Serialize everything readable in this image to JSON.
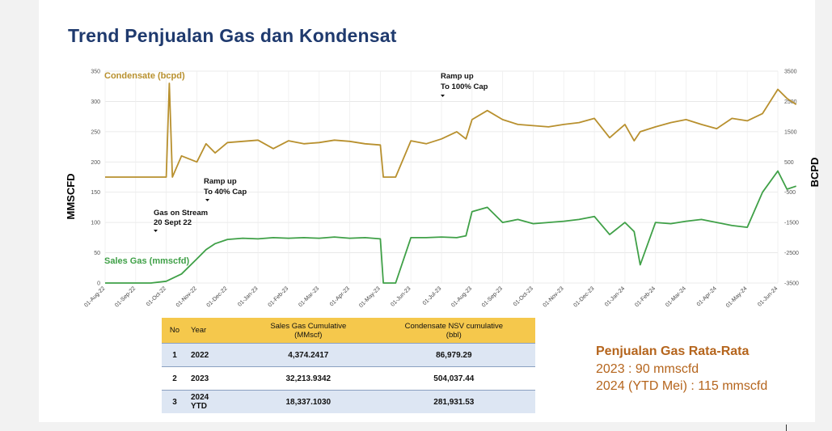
{
  "slide": {
    "title": "Trend Penjualan Gas dan Kondensat"
  },
  "chart_data": {
    "type": "line",
    "left_axis": {
      "label": "MMSCFD",
      "ticks": [
        0,
        50,
        100,
        150,
        200,
        250,
        300,
        350
      ],
      "range": [
        0,
        350
      ]
    },
    "right_axis": {
      "label": "BCPD",
      "ticks": [
        -3500,
        -2500,
        -1500,
        -500,
        500,
        1500,
        2500,
        3500
      ],
      "range": [
        -3500,
        3500
      ]
    },
    "x_ticks": [
      "01-Aug-22",
      "01-Sep-22",
      "01-Oct-22",
      "01-Nov-22",
      "01-Dec-22",
      "01-Jan-23",
      "01-Feb-23",
      "01-Mar-23",
      "01-Apr-23",
      "01-May-23",
      "01-Jun-23",
      "01-Jul-23",
      "01-Aug-23",
      "01-Sep-23",
      "01-Oct-23",
      "01-Nov-23",
      "01-Dec-23",
      "01-Jan-24",
      "01-Feb-24",
      "01-Mar-24",
      "01-Apr-24",
      "01-May-24",
      "01-Jun-24"
    ],
    "series": [
      {
        "name": "Condensate (bcpd)",
        "color": "#b8902e",
        "axis": "left",
        "x": [
          0,
          1,
          1.5,
          2,
          2.1,
          2.2,
          2.5,
          3,
          3.3,
          3.6,
          4,
          4.5,
          5,
          5.5,
          6,
          6.5,
          7,
          7.5,
          8,
          8.5,
          9,
          9.1,
          9.3,
          9.5,
          10,
          10.5,
          11,
          11.5,
          11.8,
          12,
          12.5,
          13,
          13.5,
          14,
          14.5,
          15,
          15.5,
          16,
          16.5,
          17,
          17.3,
          17.5,
          18,
          18.5,
          19,
          19.5,
          20,
          20.5,
          21,
          21.5,
          22,
          22.3,
          22.6
        ],
        "y": [
          175,
          175,
          175,
          175,
          330,
          175,
          210,
          200,
          230,
          215,
          232,
          234,
          236,
          222,
          235,
          230,
          232,
          236,
          234,
          230,
          228,
          175,
          175,
          175,
          235,
          230,
          238,
          250,
          238,
          270,
          285,
          270,
          262,
          260,
          258,
          262,
          265,
          272,
          240,
          262,
          235,
          250,
          258,
          265,
          270,
          262,
          255,
          272,
          268,
          280,
          320,
          305,
          295
        ]
      },
      {
        "name": "Sales Gas (mmscfd)",
        "color": "#3fa047",
        "axis": "left",
        "x": [
          0,
          1,
          1.5,
          2,
          2.5,
          3,
          3.3,
          3.6,
          4,
          4.5,
          5,
          5.5,
          6,
          6.5,
          7,
          7.5,
          8,
          8.5,
          9,
          9.1,
          9.3,
          9.5,
          10,
          10.5,
          11,
          11.5,
          11.8,
          12,
          12.5,
          13,
          13.5,
          14,
          14.5,
          15,
          15.5,
          16,
          16.5,
          17,
          17.3,
          17.5,
          18,
          18.5,
          19,
          19.5,
          20,
          20.5,
          21,
          21.5,
          22,
          22.3,
          22.6
        ],
        "y": [
          0,
          0,
          0,
          3,
          15,
          40,
          55,
          65,
          72,
          74,
          73,
          75,
          74,
          75,
          74,
          76,
          74,
          75,
          73,
          0,
          0,
          0,
          75,
          75,
          76,
          75,
          78,
          118,
          125,
          100,
          105,
          98,
          100,
          102,
          105,
          110,
          80,
          100,
          85,
          30,
          100,
          98,
          102,
          105,
          100,
          95,
          92,
          150,
          185,
          155,
          160
        ]
      }
    ],
    "annotations": [
      {
        "text": [
          "Gas on Stream",
          "20 Sept 22"
        ]
      },
      {
        "text": [
          "Ramp up",
          "To 40% Cap"
        ]
      },
      {
        "text": [
          "Ramp up",
          "To 100% Cap"
        ]
      }
    ]
  },
  "summary_table": {
    "headers": {
      "no": "No",
      "year": "Year",
      "gas": "Sales Gas Cumulative",
      "gas_unit": "(MMscf)",
      "cond": "Condensate NSV cumulative",
      "cond_unit": "(bbl)"
    },
    "rows": [
      {
        "no": "1",
        "year": "2022",
        "year2": "",
        "gas": "4,374.2417",
        "cond": "86,979.29"
      },
      {
        "no": "2",
        "year": "2023",
        "year2": "",
        "gas": "32,213.9342",
        "cond": "504,037.44"
      },
      {
        "no": "3",
        "year": "2024",
        "year2": "YTD",
        "gas": "18,337.1030",
        "cond": "281,931.53"
      }
    ]
  },
  "averages": {
    "title": "Penjualan Gas Rata-Rata",
    "line1": "2023 : 90 mmscfd",
    "line2": "2024 (YTD Mei) : 115 mmscfd"
  }
}
